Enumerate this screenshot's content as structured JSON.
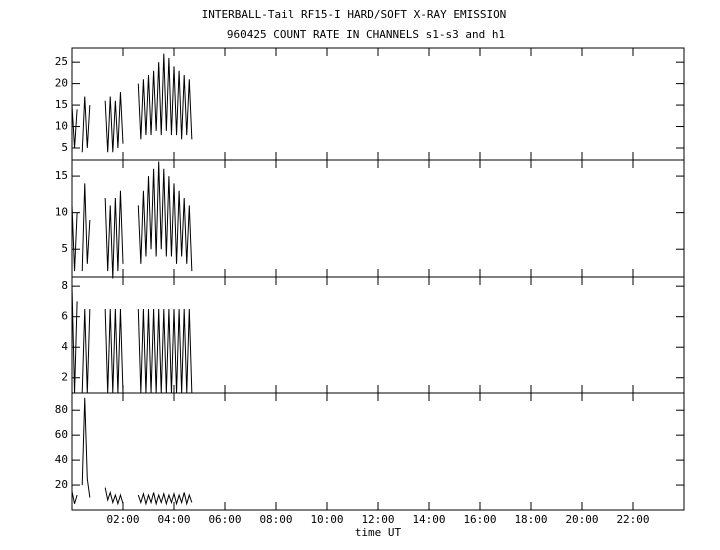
{
  "chart_data": [
    {
      "type": "line",
      "title": "INTERBALL-Tail RF15-I HARD/SOFT X-RAY EMISSION",
      "subtitle": "960425  COUNT RATE IN CHANNELS s1-s3 and h1",
      "x": [
        0,
        0.1,
        0.2,
        0.3,
        0.4,
        0.5,
        0.6,
        0.7,
        0.8,
        0.9,
        1.0,
        1.1,
        1.2,
        1.3,
        1.4,
        1.5,
        1.6,
        1.7,
        1.8,
        1.9,
        2.0,
        2.1,
        2.2,
        2.3,
        2.4,
        2.5,
        2.6,
        2.7,
        2.8,
        2.9,
        3.0,
        3.1,
        3.2,
        3.3,
        3.4,
        3.5,
        3.6,
        3.7,
        3.8,
        3.9,
        4.0,
        4.1,
        4.2,
        4.3,
        4.4,
        4.5,
        4.6,
        4.7
      ],
      "values": [
        15,
        5,
        14,
        null,
        4,
        17,
        5,
        15,
        null,
        null,
        null,
        null,
        null,
        16,
        4,
        17,
        4,
        16,
        5,
        18,
        6,
        null,
        null,
        null,
        null,
        null,
        20,
        7,
        21,
        8,
        22,
        8,
        23,
        9,
        25,
        8,
        27,
        9,
        26,
        8,
        24,
        8,
        23,
        7,
        22,
        8,
        21,
        7
      ],
      "color": "#000000",
      "xlim": [
        0,
        24
      ],
      "ylim": [
        2.2,
        28.3
      ],
      "yticks": [
        5,
        10,
        15,
        20,
        25
      ]
    },
    {
      "type": "line",
      "x": [
        0,
        0.1,
        0.2,
        0.3,
        0.4,
        0.5,
        0.6,
        0.7,
        0.8,
        0.9,
        1.0,
        1.1,
        1.2,
        1.3,
        1.4,
        1.5,
        1.6,
        1.7,
        1.8,
        1.9,
        2.0,
        2.1,
        2.2,
        2.3,
        2.4,
        2.5,
        2.6,
        2.7,
        2.8,
        2.9,
        3.0,
        3.1,
        3.2,
        3.3,
        3.4,
        3.5,
        3.6,
        3.7,
        3.8,
        3.9,
        4.0,
        4.1,
        4.2,
        4.3,
        4.4,
        4.5,
        4.6,
        4.7
      ],
      "values": [
        11,
        2,
        10,
        null,
        2,
        14,
        3,
        9,
        null,
        null,
        null,
        null,
        null,
        12,
        2,
        11,
        1,
        12,
        2,
        13,
        3,
        null,
        null,
        null,
        null,
        null,
        11,
        3,
        13,
        4,
        15,
        5,
        16,
        4,
        17,
        5,
        16,
        4,
        15,
        4,
        14,
        3,
        13,
        4,
        12,
        3,
        11,
        2
      ],
      "color": "#000000",
      "xlim": [
        0,
        24
      ],
      "ylim": [
        1.2,
        17.2
      ],
      "yticks": [
        5,
        10,
        15
      ]
    },
    {
      "type": "line",
      "x": [
        0,
        0.1,
        0.2,
        0.3,
        0.4,
        0.5,
        0.6,
        0.7,
        0.8,
        0.9,
        1.0,
        1.1,
        1.2,
        1.3,
        1.4,
        1.5,
        1.6,
        1.7,
        1.8,
        1.9,
        2.0,
        2.1,
        2.2,
        2.3,
        2.4,
        2.5,
        2.6,
        2.7,
        2.8,
        2.9,
        3.0,
        3.1,
        3.2,
        3.3,
        3.4,
        3.5,
        3.6,
        3.7,
        3.8,
        3.9,
        4.0,
        4.1,
        4.2,
        4.3,
        4.4,
        4.5,
        4.6,
        4.7
      ],
      "values": [
        8,
        1,
        7,
        null,
        1,
        6.5,
        1,
        6.5,
        null,
        null,
        null,
        null,
        null,
        6.5,
        1,
        6.5,
        1,
        6.5,
        1,
        6.5,
        1,
        null,
        null,
        null,
        null,
        null,
        6.5,
        1,
        6.5,
        1,
        6.5,
        1,
        6.5,
        1,
        6.5,
        1,
        6.5,
        1,
        6.5,
        1,
        6.5,
        1,
        6.5,
        1,
        6.5,
        1,
        6.5,
        1
      ],
      "color": "#000000",
      "xlim": [
        0,
        24
      ],
      "ylim": [
        1.0,
        8.6
      ],
      "yticks": [
        2,
        4,
        6,
        8
      ]
    },
    {
      "type": "line",
      "xlabel": "time UT",
      "x": [
        0,
        0.1,
        0.2,
        0.3,
        0.4,
        0.5,
        0.6,
        0.7,
        0.8,
        0.9,
        1.0,
        1.1,
        1.2,
        1.3,
        1.4,
        1.5,
        1.6,
        1.7,
        1.8,
        1.9,
        2.0,
        2.1,
        2.2,
        2.3,
        2.4,
        2.5,
        2.6,
        2.7,
        2.8,
        2.9,
        3.0,
        3.1,
        3.2,
        3.3,
        3.4,
        3.5,
        3.6,
        3.7,
        3.8,
        3.9,
        4.0,
        4.1,
        4.2,
        4.3,
        4.4,
        4.5,
        4.6,
        4.7
      ],
      "values": [
        15,
        5,
        12,
        null,
        20,
        90,
        25,
        10,
        null,
        null,
        null,
        null,
        null,
        18,
        8,
        14,
        6,
        12,
        5,
        12,
        5,
        null,
        null,
        null,
        null,
        null,
        12,
        6,
        13,
        5,
        12,
        6,
        14,
        5,
        12,
        6,
        13,
        5,
        12,
        6,
        13,
        5,
        12,
        6,
        14,
        5,
        12,
        6
      ],
      "color": "#000000",
      "xlim": [
        0,
        24
      ],
      "ylim": [
        0,
        93.8
      ],
      "yticks": [
        20,
        40,
        60,
        80
      ],
      "xticks": [
        {
          "value": 2,
          "label": "02:00"
        },
        {
          "value": 4,
          "label": "04:00"
        },
        {
          "value": 6,
          "label": "06:00"
        },
        {
          "value": 8,
          "label": "08:00"
        },
        {
          "value": 10,
          "label": "10:00"
        },
        {
          "value": 12,
          "label": "12:00"
        },
        {
          "value": 14,
          "label": "14:00"
        },
        {
          "value": 16,
          "label": "16:00"
        },
        {
          "value": 18,
          "label": "18:00"
        },
        {
          "value": 20,
          "label": "20:00"
        },
        {
          "value": 22,
          "label": "22:00"
        }
      ]
    }
  ]
}
